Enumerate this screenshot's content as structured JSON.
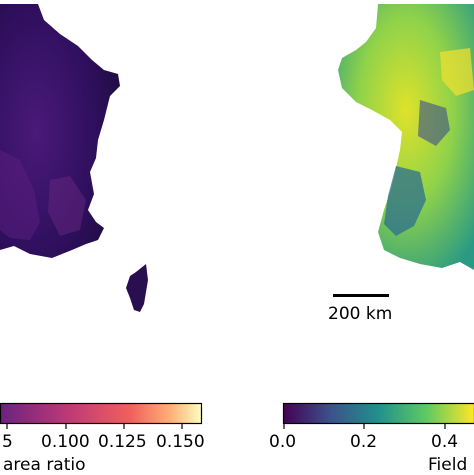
{
  "left_colorbar": {
    "label": "area ratio",
    "colormap": "magma",
    "ticks": [
      {
        "label": "5"
      },
      {
        "label": "0.100"
      },
      {
        "label": "0.125"
      },
      {
        "label": "0.150"
      }
    ],
    "colors": [
      "#3b0f70",
      "#8c2981",
      "#de4968",
      "#fe9f6d",
      "#fcfdbf"
    ]
  },
  "right_colorbar": {
    "label": "Field",
    "colormap": "viridis",
    "ticks": [
      {
        "label": "0.0"
      },
      {
        "label": "0.2"
      },
      {
        "label": "0.4"
      }
    ],
    "colors": [
      "#440154",
      "#3b528b",
      "#21918c",
      "#5ec962",
      "#fde725"
    ]
  },
  "scale_bar": {
    "label": "200 km"
  }
}
